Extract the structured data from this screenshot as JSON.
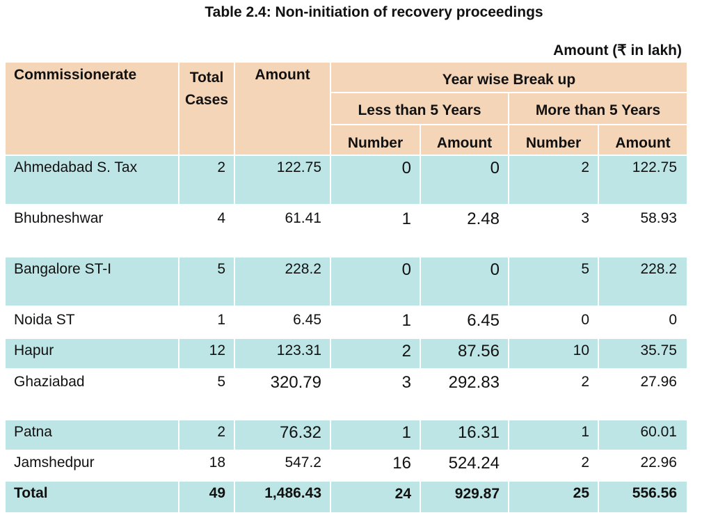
{
  "title": "Table 2.4: Non-initiation of recovery proceedings",
  "unit_note": "Amount (₹ in lakh)",
  "headers": {
    "commissionerate": "Commissionerate",
    "total_cases_line1": "Total",
    "total_cases_line2": "Cases",
    "amount": "Amount",
    "year_wise": "Year wise Break up",
    "less_than_5": "Less than 5 Years",
    "more_than_5": "More than 5 Years",
    "number": "Number",
    "amount_sub": "Amount"
  },
  "rows": [
    {
      "name": "Ahmedabad S. Tax",
      "cases": "2",
      "amount": "122.75",
      "lt_num": "0",
      "lt_amt": "0",
      "mt_num": "2",
      "mt_amt": "122.75",
      "shaded": true
    },
    {
      "name": "Bhubneshwar",
      "cases": "4",
      "amount": "61.41",
      "lt_num": "1",
      "lt_amt": "2.48",
      "mt_num": "3",
      "mt_amt": "58.93",
      "shaded": false
    },
    {
      "name": "Bangalore ST-I",
      "cases": "5",
      "amount": "228.2",
      "lt_num": "0",
      "lt_amt": "0",
      "mt_num": "5",
      "mt_amt": "228.2",
      "shaded": true
    },
    {
      "name": "Noida ST",
      "cases": "1",
      "amount": "6.45",
      "lt_num": "1",
      "lt_amt": "6.45",
      "mt_num": "0",
      "mt_amt": "0",
      "shaded": false
    },
    {
      "name": "Hapur",
      "cases": "12",
      "amount": "123.31",
      "lt_num": "2",
      "lt_amt": "87.56",
      "mt_num": "10",
      "mt_amt": "35.75",
      "shaded": true
    },
    {
      "name": "Ghaziabad",
      "cases": "5",
      "amount": "320.79",
      "lt_num": "3",
      "lt_amt": "292.83",
      "mt_num": "2",
      "mt_amt": "27.96",
      "shaded": false
    },
    {
      "name": "Patna",
      "cases": "2",
      "amount": "76.32",
      "lt_num": "1",
      "lt_amt": "16.31",
      "mt_num": "1",
      "mt_amt": "60.01",
      "shaded": true
    },
    {
      "name": "Jamshedpur",
      "cases": "18",
      "amount": "547.2",
      "lt_num": "16",
      "lt_amt": "524.24",
      "mt_num": "2",
      "mt_amt": "22.96",
      "shaded": false
    }
  ],
  "total": {
    "name": "Total",
    "cases": "49",
    "amount": "1,486.43",
    "lt_num": "24",
    "lt_amt": "929.87",
    "mt_num": "25",
    "mt_amt": "556.56"
  },
  "colors": {
    "header": "#f5d5b8",
    "shaded_row": "#bde5e6"
  }
}
